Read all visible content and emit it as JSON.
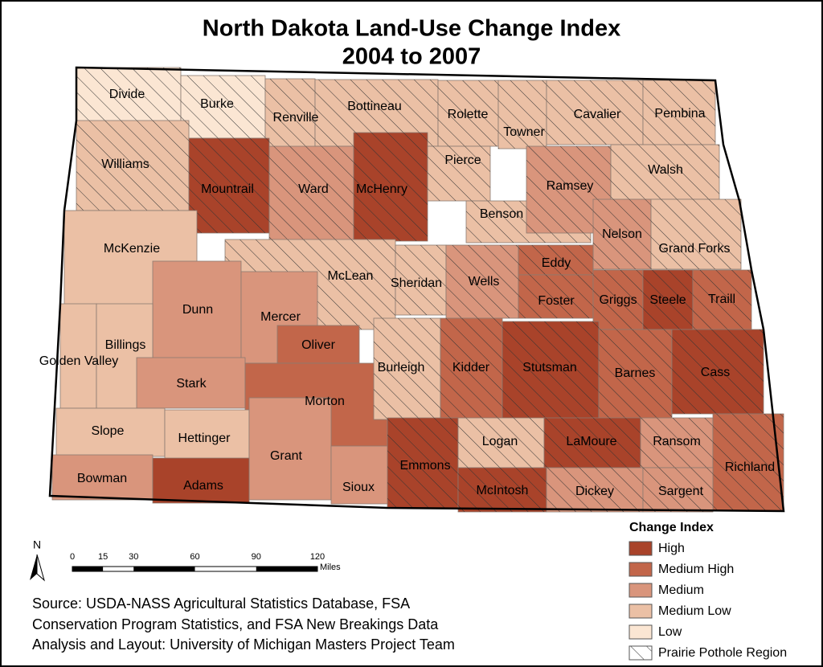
{
  "title": [
    "North Dakota Land-Use Change Index",
    "2004 to 2007"
  ],
  "legend": {
    "title": "Change Index",
    "items": [
      {
        "label": "High",
        "color": "#a9432a"
      },
      {
        "label": "Medium High",
        "color": "#c2664a"
      },
      {
        "label": "Medium",
        "color": "#d9957c"
      },
      {
        "label": "Medium Low",
        "color": "#ebc0a5"
      },
      {
        "label": "Low",
        "color": "#fbe6d3"
      }
    ],
    "pattern_label": "Prairie Pothole Region"
  },
  "north_arrow": "N",
  "scale_bar": {
    "ticks": [
      0,
      15,
      30,
      60,
      90,
      120
    ],
    "unit": "Miles"
  },
  "source": [
    "Source: USDA-NASS Agricultural Statistics Database, FSA",
    "Conservation Program Statistics, and FSA New Breakings Data",
    "Analysis and Layout: University of Michigan Masters Project Team"
  ],
  "counties": [
    {
      "name": "Divide",
      "class": "Low",
      "prairie_pothole": true
    },
    {
      "name": "Burke",
      "class": "Low",
      "prairie_pothole": true
    },
    {
      "name": "Renville",
      "class": "Medium Low",
      "prairie_pothole": true
    },
    {
      "name": "Bottineau",
      "class": "Medium Low",
      "prairie_pothole": true
    },
    {
      "name": "Rolette",
      "class": "Medium Low",
      "prairie_pothole": true
    },
    {
      "name": "Towner",
      "class": "Medium Low",
      "prairie_pothole": true
    },
    {
      "name": "Cavalier",
      "class": "Medium Low",
      "prairie_pothole": true
    },
    {
      "name": "Pembina",
      "class": "Medium Low",
      "prairie_pothole": true
    },
    {
      "name": "Williams",
      "class": "Medium Low",
      "prairie_pothole": true
    },
    {
      "name": "Mountrail",
      "class": "High",
      "prairie_pothole": true
    },
    {
      "name": "Ward",
      "class": "Medium",
      "prairie_pothole": true
    },
    {
      "name": "McHenry",
      "class": "High",
      "prairie_pothole": true
    },
    {
      "name": "Pierce",
      "class": "Medium Low",
      "prairie_pothole": true
    },
    {
      "name": "Benson",
      "class": "Medium Low",
      "prairie_pothole": true
    },
    {
      "name": "Ramsey",
      "class": "Medium",
      "prairie_pothole": true
    },
    {
      "name": "Walsh",
      "class": "Medium Low",
      "prairie_pothole": true
    },
    {
      "name": "Nelson",
      "class": "Medium",
      "prairie_pothole": true
    },
    {
      "name": "Grand Forks",
      "class": "Medium Low",
      "prairie_pothole": true
    },
    {
      "name": "McKenzie",
      "class": "Medium Low",
      "prairie_pothole": false
    },
    {
      "name": "McLean",
      "class": "Medium Low",
      "prairie_pothole": true
    },
    {
      "name": "Dunn",
      "class": "Medium",
      "prairie_pothole": false
    },
    {
      "name": "Mercer",
      "class": "Medium",
      "prairie_pothole": false
    },
    {
      "name": "Sheridan",
      "class": "Medium Low",
      "prairie_pothole": true
    },
    {
      "name": "Wells",
      "class": "Medium",
      "prairie_pothole": true
    },
    {
      "name": "Eddy",
      "class": "Medium High",
      "prairie_pothole": true
    },
    {
      "name": "Foster",
      "class": "Medium High",
      "prairie_pothole": true
    },
    {
      "name": "Griggs",
      "class": "Medium High",
      "prairie_pothole": true
    },
    {
      "name": "Steele",
      "class": "High",
      "prairie_pothole": true
    },
    {
      "name": "Traill",
      "class": "Medium High",
      "prairie_pothole": true
    },
    {
      "name": "Golden Valley",
      "class": "Medium Low",
      "prairie_pothole": false
    },
    {
      "name": "Billings",
      "class": "Medium Low",
      "prairie_pothole": false
    },
    {
      "name": "Stark",
      "class": "Medium",
      "prairie_pothole": false
    },
    {
      "name": "Oliver",
      "class": "Medium High",
      "prairie_pothole": false
    },
    {
      "name": "Morton",
      "class": "Medium High",
      "prairie_pothole": false
    },
    {
      "name": "Burleigh",
      "class": "Medium Low",
      "prairie_pothole": true
    },
    {
      "name": "Kidder",
      "class": "Medium High",
      "prairie_pothole": true
    },
    {
      "name": "Stutsman",
      "class": "High",
      "prairie_pothole": true
    },
    {
      "name": "Barnes",
      "class": "Medium High",
      "prairie_pothole": true
    },
    {
      "name": "Cass",
      "class": "High",
      "prairie_pothole": true
    },
    {
      "name": "Slope",
      "class": "Medium Low",
      "prairie_pothole": false
    },
    {
      "name": "Hettinger",
      "class": "Medium Low",
      "prairie_pothole": false
    },
    {
      "name": "Grant",
      "class": "Medium",
      "prairie_pothole": false
    },
    {
      "name": "Sioux",
      "class": "Medium",
      "prairie_pothole": false
    },
    {
      "name": "Emmons",
      "class": "High",
      "prairie_pothole": true
    },
    {
      "name": "Logan",
      "class": "Medium Low",
      "prairie_pothole": true
    },
    {
      "name": "LaMoure",
      "class": "High",
      "prairie_pothole": true
    },
    {
      "name": "Ransom",
      "class": "Medium",
      "prairie_pothole": true
    },
    {
      "name": "Richland",
      "class": "Medium High",
      "prairie_pothole": true
    },
    {
      "name": "Bowman",
      "class": "Medium",
      "prairie_pothole": false
    },
    {
      "name": "Adams",
      "class": "High",
      "prairie_pothole": false
    },
    {
      "name": "McIntosh",
      "class": "High",
      "prairie_pothole": true
    },
    {
      "name": "Dickey",
      "class": "Medium",
      "prairie_pothole": true
    },
    {
      "name": "Sargent",
      "class": "Medium",
      "prairie_pothole": true
    }
  ]
}
